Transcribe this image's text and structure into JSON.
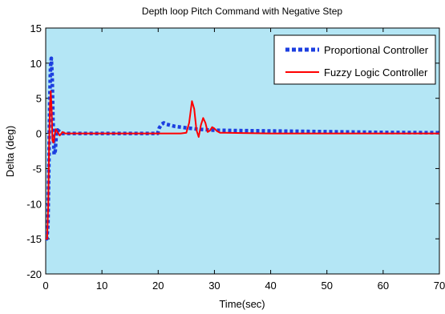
{
  "chart_data": {
    "type": "line",
    "title": "Depth loop Pitch Command with Negative Step",
    "xlabel": "Time(sec)",
    "ylabel": "Delta (deg)",
    "xlim": [
      0,
      70
    ],
    "ylim": [
      -20,
      15
    ],
    "xticks": [
      "0",
      "10",
      "20",
      "30",
      "40",
      "50",
      "60",
      "70"
    ],
    "yticks": [
      "15",
      "10",
      "5",
      "0",
      "-5",
      "-10",
      "-15",
      "-20"
    ],
    "grid": false,
    "legend_position": "top-right",
    "background_color": "#b4e6f5",
    "series": [
      {
        "name": "Proportional Controller",
        "color": "#1c3fe0",
        "style": "dotted",
        "x": [
          0,
          0.2,
          0.4,
          0.55,
          0.7,
          0.85,
          1.0,
          1.15,
          1.3,
          1.5,
          1.7,
          1.9,
          2.1,
          2.4,
          2.8,
          3.5,
          5,
          10,
          15,
          19.9,
          20.2,
          20.6,
          21,
          21.5,
          22,
          23,
          24,
          25,
          26,
          27,
          28,
          29,
          30,
          35,
          40,
          45,
          50,
          60,
          70
        ],
        "y": [
          -15,
          -15,
          -13,
          -5,
          4,
          9.5,
          10.7,
          8,
          2,
          -3,
          -2.5,
          0,
          0.5,
          0.3,
          0,
          0,
          0,
          0,
          0,
          0,
          0.8,
          1.3,
          1.5,
          1.3,
          1.2,
          1.0,
          0.9,
          0.8,
          0.7,
          0.6,
          0.55,
          0.5,
          0.45,
          0.4,
          0.35,
          0.3,
          0.25,
          0.15,
          0.1
        ]
      },
      {
        "name": "Fuzzy Logic Controller",
        "color": "#ff0000",
        "style": "solid",
        "x": [
          0,
          0.25,
          0.45,
          0.6,
          0.75,
          0.9,
          1.05,
          1.2,
          1.4,
          1.6,
          1.8,
          2.1,
          2.5,
          3.0,
          3.5,
          5,
          10,
          15,
          20,
          21,
          22,
          23,
          24,
          25,
          25.5,
          26.0,
          26.4,
          26.8,
          27.2,
          27.6,
          28.0,
          28.4,
          28.8,
          29.2,
          29.6,
          30.0,
          30.5,
          31,
          32,
          35,
          40,
          50,
          60,
          70
        ],
        "y": [
          -15,
          -15,
          -10,
          -2,
          4,
          6,
          3.5,
          -1,
          -1.3,
          -0.2,
          0.6,
          0.2,
          -0.3,
          0.2,
          0,
          0,
          0,
          0,
          0,
          0,
          0,
          0,
          0,
          0.1,
          1.5,
          4.6,
          3.5,
          0.5,
          -0.5,
          1.2,
          2.2,
          1.5,
          0.2,
          0.4,
          0.9,
          0.7,
          0.3,
          0.1,
          0.1,
          0.05,
          0,
          0,
          0,
          0
        ]
      }
    ]
  }
}
